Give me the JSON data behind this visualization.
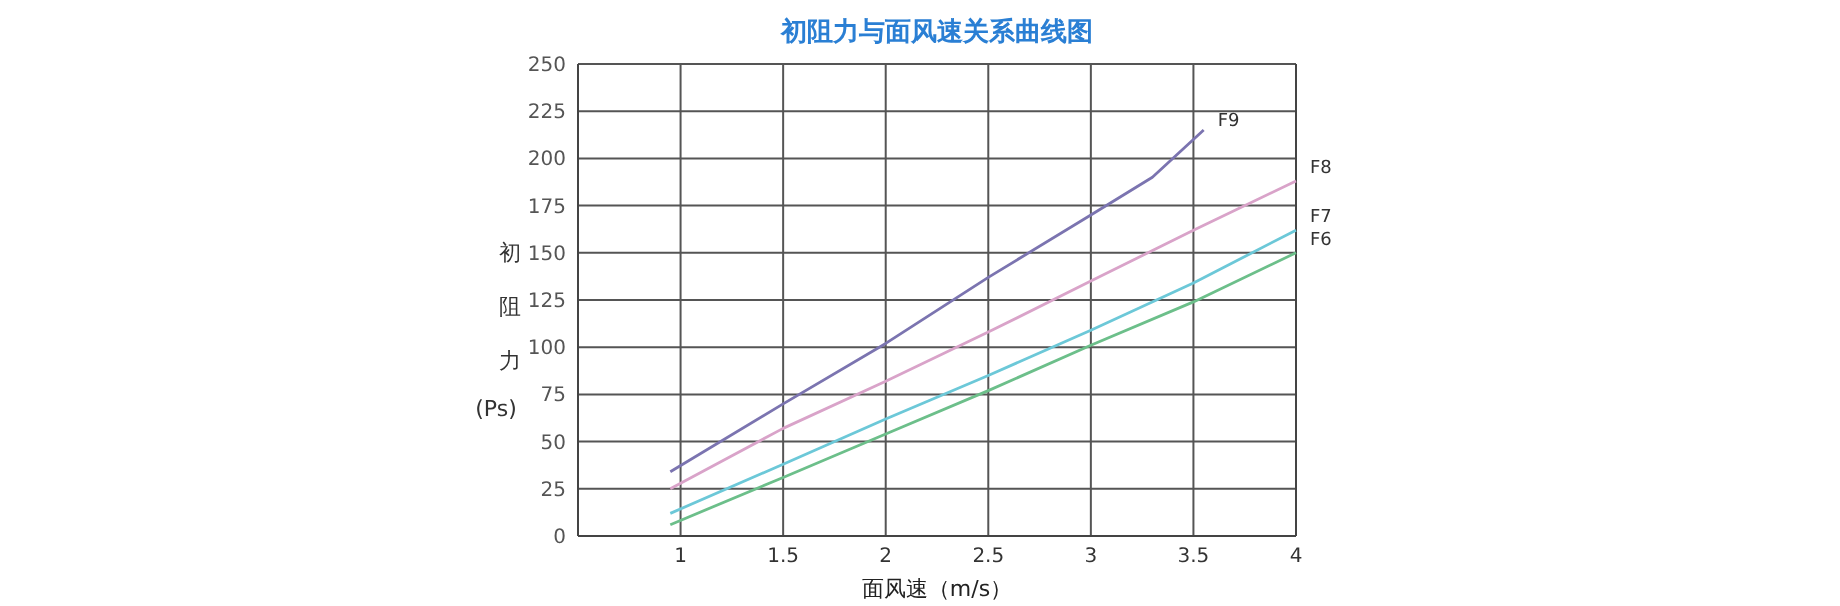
{
  "chart_data": {
    "type": "line",
    "title": "初阻力与面风速关系曲线图",
    "xlabel": "面风速（m/s）",
    "ylabel": "初阻力(Ps)",
    "xlim": [
      0.5,
      4
    ],
    "xticks": [
      1,
      1.5,
      2,
      2.5,
      3,
      3.5,
      4
    ],
    "ylim": [
      0,
      250
    ],
    "yticks": [
      0,
      25,
      50,
      75,
      100,
      125,
      150,
      175,
      200,
      225,
      250
    ],
    "grid": true,
    "legend": false,
    "marker": "none",
    "line_style": "solid",
    "series": [
      {
        "name": "F9",
        "color": "#7b74b0",
        "x": [
          0.95,
          1.5,
          2,
          2.5,
          3,
          3.3,
          3.55
        ],
        "values": [
          34,
          70,
          102,
          137,
          170,
          190,
          215
        ]
      },
      {
        "name": "F8",
        "color": "#d9a3c9",
        "x": [
          0.95,
          1.5,
          2,
          2.5,
          3,
          3.5,
          4
        ],
        "values": [
          25,
          57,
          82,
          108,
          135,
          162,
          188
        ]
      },
      {
        "name": "F7",
        "color": "#6cc8d8",
        "x": [
          0.95,
          1.5,
          2,
          2.5,
          3,
          3.5,
          4
        ],
        "values": [
          12,
          38,
          62,
          85,
          109,
          134,
          162
        ]
      },
      {
        "name": "F6",
        "color": "#6cbf8a",
        "x": [
          0.95,
          1.5,
          2,
          2.5,
          3,
          3.5,
          4
        ],
        "values": [
          6,
          31,
          54,
          77,
          101,
          124,
          150
        ]
      }
    ]
  }
}
